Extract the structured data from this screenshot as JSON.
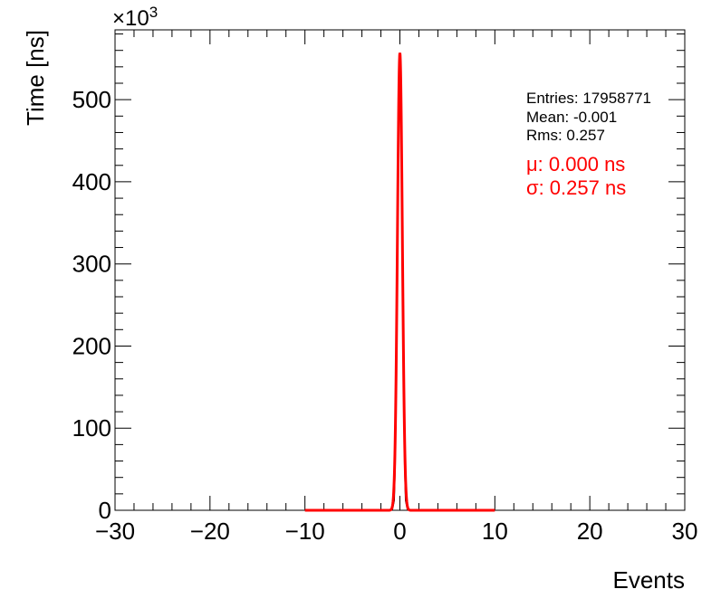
{
  "chart_data": {
    "type": "line",
    "xlabel": "Events",
    "ylabel": "Time [ns]",
    "y_multiplier": "×10",
    "y_multiplier_exp": "3",
    "xlim": [
      -30,
      30
    ],
    "ylim": [
      0,
      585000
    ],
    "x_ticks": [
      -30,
      -20,
      -10,
      0,
      10,
      20,
      30
    ],
    "x_tick_labels": [
      "−30",
      "−20",
      "−10",
      "0",
      "10",
      "20",
      "30"
    ],
    "y_ticks": [
      0,
      100000,
      200000,
      300000,
      400000,
      500000
    ],
    "y_tick_labels": [
      "0",
      "100",
      "200",
      "300",
      "400",
      "500"
    ],
    "grid": false,
    "stats": {
      "entries": "Entries: 17958771",
      "mean": "Mean: -0.001",
      "rms": "Rms: 0.257"
    },
    "fit_labels": {
      "mu": "μ: 0.000 ns",
      "sigma": "σ: 0.257 ns"
    },
    "series": [
      {
        "kind": "histogram",
        "color": "#000000",
        "x": [
          -1.2,
          -1.0,
          -0.8,
          -0.6,
          -0.5,
          -0.4,
          -0.3,
          -0.2,
          -0.1,
          0.0,
          0.1,
          0.2,
          0.3,
          0.4,
          0.5,
          0.6,
          0.8,
          1.0,
          1.2
        ],
        "y": [
          0,
          0,
          500,
          12000,
          55000,
          170000,
          310000,
          440000,
          530000,
          557000,
          530000,
          440000,
          310000,
          170000,
          55000,
          12000,
          500,
          0,
          0
        ]
      },
      {
        "kind": "fit",
        "color": "#ff0000",
        "range": [
          -10,
          10
        ],
        "mean": 0.0,
        "sigma": 0.257,
        "amplitude": 557000
      }
    ]
  }
}
